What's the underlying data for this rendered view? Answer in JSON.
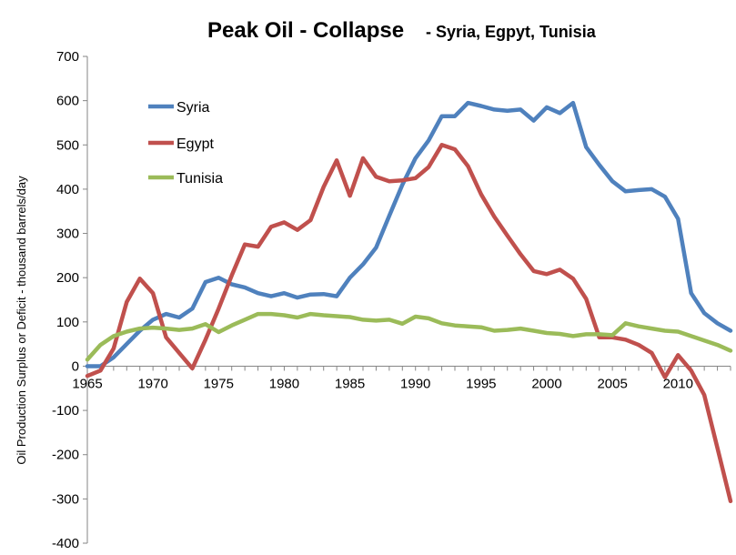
{
  "chart_data": {
    "type": "line",
    "title": "Peak Oil -  Collapse",
    "subtitle": "- Syria, Egpyt, Tunisia",
    "xlabel": "",
    "ylabel": "Oil Production Surplus or Deficit - thousand  barrels/day",
    "xlim": [
      1965,
      2014
    ],
    "ylim": [
      -400,
      700
    ],
    "x_ticks": [
      "1965",
      "1970",
      "1975",
      "1980",
      "1985",
      "1990",
      "1995",
      "2000",
      "2005",
      "2010"
    ],
    "y_ticks": [
      "700",
      "600",
      "500",
      "400",
      "300",
      "200",
      "100",
      "0",
      "-100",
      "-200",
      "-300",
      "-400"
    ],
    "legend_position": "top-left",
    "x": [
      1965,
      1966,
      1967,
      1968,
      1969,
      1970,
      1971,
      1972,
      1973,
      1974,
      1975,
      1976,
      1977,
      1978,
      1979,
      1980,
      1981,
      1982,
      1983,
      1984,
      1985,
      1986,
      1987,
      1988,
      1989,
      1990,
      1991,
      1992,
      1993,
      1994,
      1995,
      1996,
      1997,
      1998,
      1999,
      2000,
      2001,
      2002,
      2003,
      2004,
      2005,
      2006,
      2007,
      2008,
      2009,
      2010,
      2011,
      2012,
      2013,
      2014
    ],
    "series": [
      {
        "name": "Syria",
        "color": "#4F81BD",
        "values": [
          0,
          0,
          20,
          50,
          80,
          105,
          118,
          110,
          130,
          190,
          200,
          185,
          178,
          165,
          158,
          165,
          155,
          162,
          163,
          158,
          200,
          230,
          268,
          340,
          410,
          470,
          510,
          565,
          565,
          595,
          588,
          580,
          577,
          580,
          555,
          585,
          572,
          595,
          495,
          455,
          418,
          395,
          398,
          400,
          383,
          333,
          165,
          120,
          97,
          80
        ]
      },
      {
        "name": "Egypt",
        "color": "#C0504D",
        "values": [
          -22,
          -10,
          40,
          145,
          198,
          165,
          65,
          30,
          -5,
          60,
          130,
          205,
          275,
          270,
          315,
          325,
          308,
          330,
          405,
          465,
          385,
          470,
          428,
          418,
          420,
          425,
          450,
          500,
          490,
          452,
          388,
          338,
          295,
          253,
          215,
          208,
          218,
          198,
          152,
          65,
          65,
          60,
          48,
          30,
          -25,
          25,
          -10,
          -65,
          -185,
          -305
        ]
      },
      {
        "name": "Tunisia",
        "color": "#9BBB59",
        "values": [
          15,
          48,
          68,
          78,
          85,
          87,
          85,
          82,
          85,
          95,
          77,
          92,
          105,
          118,
          118,
          115,
          110,
          118,
          115,
          113,
          111,
          105,
          103,
          105,
          96,
          112,
          108,
          97,
          92,
          90,
          88,
          80,
          82,
          85,
          80,
          75,
          73,
          68,
          72,
          72,
          70,
          97,
          90,
          85,
          80,
          78,
          68,
          58,
          48,
          35
        ]
      }
    ]
  }
}
